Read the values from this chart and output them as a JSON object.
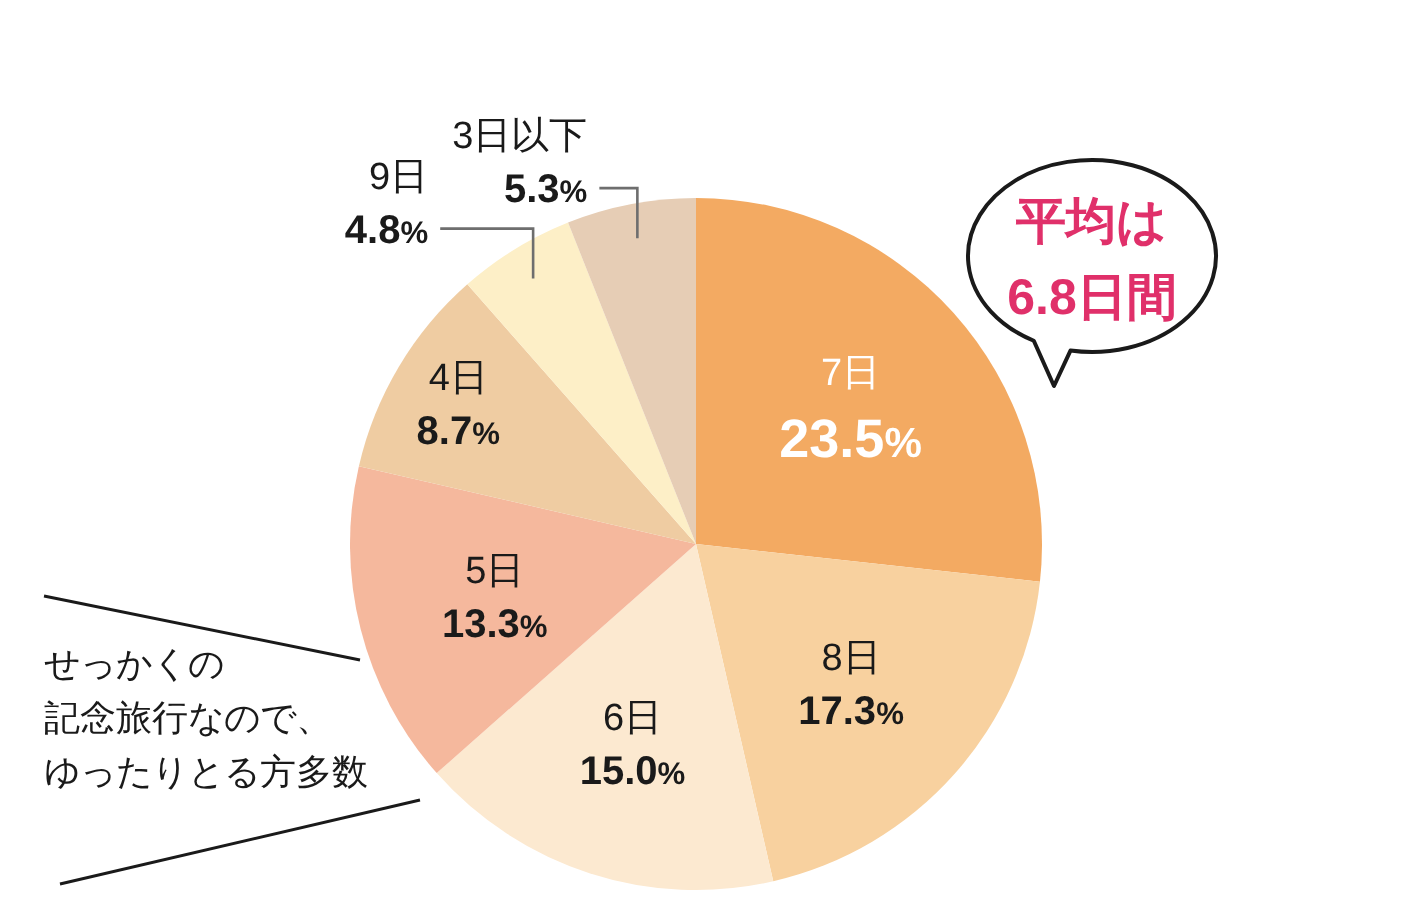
{
  "chart_data": {
    "type": "pie",
    "categories": [
      "7日",
      "8日",
      "6日",
      "5日",
      "4日",
      "9日",
      "3日以下"
    ],
    "values": [
      23.5,
      17.3,
      15.0,
      13.3,
      8.7,
      4.8,
      5.3
    ],
    "value_labels": [
      "23.5%",
      "17.3%",
      "15.0%",
      "13.3%",
      "8.7%",
      "4.8%",
      "5.3%"
    ],
    "colors": [
      "#f3aa62",
      "#f8d19f",
      "#fce9d0",
      "#f5b89d",
      "#efcca2",
      "#fdefc7",
      "#e6cdb5"
    ],
    "annotations": [
      "平均は\n6.8日間",
      "せっかくの",
      "記念旅行なので、",
      "ゆったりとる方多数"
    ]
  }
}
